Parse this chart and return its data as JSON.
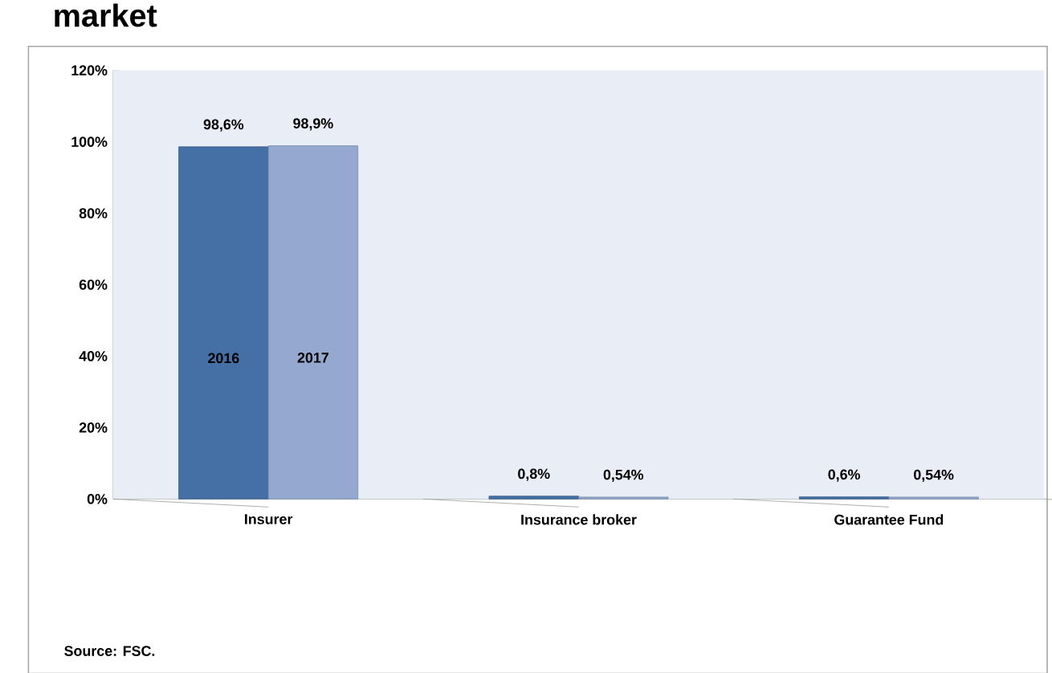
{
  "chart_data": {
    "type": "bar",
    "title": "market",
    "categories": [
      "Insurer",
      "Insurance broker",
      "Guarantee Fund"
    ],
    "series": [
      {
        "name": "2016",
        "color": "#4470a5",
        "values": [
          98.6,
          0.8,
          0.6
        ],
        "value_labels": [
          "98,6%",
          "0,8%",
          "0,6%"
        ]
      },
      {
        "name": "2017",
        "color": "#95a9d0",
        "values": [
          98.9,
          0.54,
          0.54
        ],
        "value_labels": [
          "98,9%",
          "0,54%",
          "0,54%"
        ]
      }
    ],
    "ylim": [
      0,
      120
    ],
    "yticks": [
      {
        "value": 0,
        "label": "0%"
      },
      {
        "value": 20,
        "label": "20%"
      },
      {
        "value": 40,
        "label": "40%"
      },
      {
        "value": 60,
        "label": "60%"
      },
      {
        "value": 80,
        "label": "80%"
      },
      {
        "value": 100,
        "label": "100%"
      },
      {
        "value": 120,
        "label": "120%"
      }
    ],
    "annotations": [
      "Source: FSC."
    ]
  }
}
